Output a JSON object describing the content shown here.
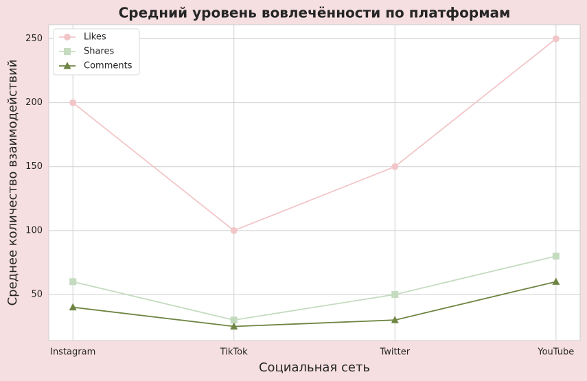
{
  "chart_data": {
    "type": "line",
    "title": "Средний уровень вовлечённости по платформам",
    "xlabel": "Социальная сеть",
    "ylabel": "Среднее количество взаимодействий",
    "categories": [
      "Instagram",
      "TikTok",
      "Twitter",
      "YouTube"
    ],
    "series": [
      {
        "name": "Likes",
        "color": "#f2c6c8",
        "marker": "circle",
        "values": [
          200,
          100,
          150,
          250
        ]
      },
      {
        "name": "Shares",
        "color": "#c4dbc0",
        "marker": "square",
        "values": [
          60,
          30,
          50,
          80
        ]
      },
      {
        "name": "Comments",
        "color": "#6f8543",
        "marker": "triangle",
        "values": [
          40,
          25,
          30,
          60
        ]
      }
    ],
    "ylim": [
      14,
      261
    ],
    "yticks": [
      50,
      100,
      150,
      200,
      250
    ],
    "grid": true,
    "legend": "upper left"
  }
}
